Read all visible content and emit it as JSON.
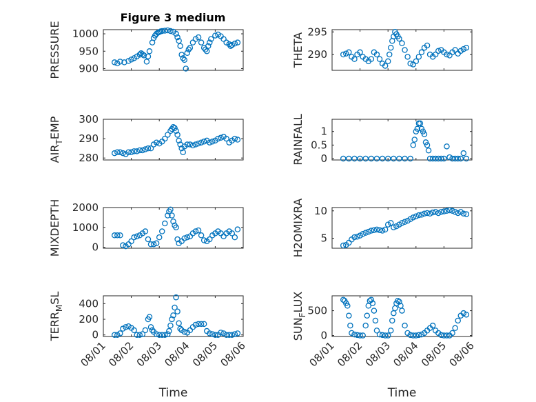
{
  "figure": {
    "title": "Figure 3 medium",
    "marker_color": "#0072BD",
    "marker": "circle"
  },
  "chart_data": [
    {
      "type": "scatter",
      "name": "PRESSURE",
      "ylabel": [
        "PRESSURE"
      ],
      "xlabel": "",
      "ylim": [
        895,
        1012
      ],
      "yticks": [
        900,
        950,
        1000
      ],
      "xlim": [
        0,
        5
      ],
      "xticks": [
        0,
        1,
        2,
        3,
        4,
        5
      ],
      "xticklabels": [],
      "grid": true,
      "x": [
        0.4,
        0.5,
        0.6,
        0.75,
        0.9,
        1.0,
        1.1,
        1.2,
        1.3,
        1.35,
        1.4,
        1.45,
        1.55,
        1.6,
        1.65,
        1.75,
        1.8,
        1.85,
        1.9,
        1.95,
        2.0,
        2.05,
        2.1,
        2.2,
        2.3,
        2.4,
        2.5,
        2.6,
        2.65,
        2.7,
        2.75,
        2.8,
        2.85,
        2.9,
        2.95,
        3.0,
        3.05,
        3.1,
        3.2,
        3.3,
        3.4,
        3.5,
        3.6,
        3.65,
        3.7,
        3.75,
        3.8,
        3.85,
        4.0,
        4.1,
        4.2,
        4.3,
        4.4,
        4.5,
        4.55,
        4.6,
        4.7,
        4.8
      ],
      "y": [
        918,
        915,
        920,
        918,
        922,
        926,
        930,
        935,
        940,
        944,
        941,
        938,
        920,
        935,
        950,
        975,
        988,
        995,
        1000,
        1003,
        1005,
        1007,
        1008,
        1009,
        1010,
        1008,
        1006,
        1000,
        990,
        980,
        965,
        940,
        930,
        925,
        900,
        945,
        955,
        960,
        975,
        985,
        990,
        975,
        960,
        955,
        950,
        965,
        975,
        985,
        995,
        998,
        993,
        985,
        975,
        970,
        965,
        968,
        972,
        975
      ]
    },
    {
      "type": "scatter",
      "name": "THETA",
      "ylabel": [
        "THETA"
      ],
      "xlabel": "",
      "ylim": [
        286.5,
        295.5
      ],
      "yticks": [
        290,
        295
      ],
      "xlim": [
        0,
        5
      ],
      "xticks": [
        0,
        1,
        2,
        3,
        4,
        5
      ],
      "xticklabels": [],
      "grid": true,
      "x": [
        0.4,
        0.5,
        0.6,
        0.7,
        0.8,
        0.9,
        1.0,
        1.1,
        1.2,
        1.3,
        1.4,
        1.5,
        1.6,
        1.7,
        1.8,
        1.9,
        2.0,
        2.05,
        2.1,
        2.15,
        2.2,
        2.25,
        2.3,
        2.35,
        2.4,
        2.5,
        2.6,
        2.7,
        2.8,
        2.9,
        3.0,
        3.1,
        3.2,
        3.3,
        3.4,
        3.5,
        3.6,
        3.7,
        3.8,
        3.9,
        4.0,
        4.1,
        4.2,
        4.3,
        4.4,
        4.5,
        4.6,
        4.7,
        4.8
      ],
      "y": [
        290,
        290.2,
        290.5,
        289.5,
        289,
        290,
        290.5,
        289.5,
        289,
        288.5,
        289,
        290.5,
        290,
        289,
        288,
        287.5,
        288.5,
        290,
        291.5,
        293,
        294,
        295,
        294.5,
        294,
        293.5,
        292.5,
        291,
        289.5,
        288,
        287.8,
        288.5,
        289.5,
        290.5,
        291.5,
        292,
        290,
        289.5,
        290,
        290.8,
        291,
        290.5,
        290,
        289.8,
        290.5,
        291,
        290.2,
        290.8,
        291.2,
        291.5
      ]
    },
    {
      "type": "scatter",
      "name": "AIR_TEMP",
      "ylabel": [
        "AIR",
        "T",
        "EMP"
      ],
      "xlabel": "",
      "ylim": [
        279,
        300
      ],
      "yticks": [
        280,
        290,
        300
      ],
      "xlim": [
        0,
        5
      ],
      "xticks": [
        0,
        1,
        2,
        3,
        4,
        5
      ],
      "xticklabels": [],
      "grid": true,
      "x": [
        0.4,
        0.5,
        0.6,
        0.7,
        0.8,
        0.9,
        1.0,
        1.1,
        1.2,
        1.3,
        1.4,
        1.5,
        1.6,
        1.7,
        1.8,
        1.9,
        2.0,
        2.1,
        2.2,
        2.3,
        2.4,
        2.45,
        2.5,
        2.55,
        2.6,
        2.65,
        2.7,
        2.75,
        2.8,
        2.85,
        2.9,
        3.0,
        3.1,
        3.2,
        3.3,
        3.4,
        3.5,
        3.6,
        3.7,
        3.8,
        3.9,
        4.0,
        4.1,
        4.2,
        4.3,
        4.4,
        4.5,
        4.6,
        4.7,
        4.8
      ],
      "y": [
        282.5,
        283,
        283,
        282.5,
        282,
        283,
        283,
        283.5,
        283.5,
        284,
        284,
        284.5,
        285,
        285,
        287,
        288,
        287.5,
        288.5,
        290,
        292,
        294,
        295,
        296,
        295.5,
        294,
        292,
        289,
        287,
        285,
        283,
        286,
        287,
        287,
        286.5,
        287,
        287.5,
        288,
        288.5,
        289,
        288,
        288.5,
        289,
        290,
        290.5,
        291,
        290,
        288,
        289,
        290,
        289.5
      ]
    },
    {
      "type": "scatter",
      "name": "RAINFALL",
      "ylabel": [
        "RAINFALL"
      ],
      "xlabel": "",
      "ylim": [
        -0.05,
        1.45
      ],
      "yticks": [
        0,
        0.5,
        1
      ],
      "yticklabels": [
        "0",
        "0.5",
        "1"
      ],
      "xlim": [
        0,
        5
      ],
      "xticks": [
        0,
        1,
        2,
        3,
        4,
        5
      ],
      "xticklabels": [],
      "grid": true,
      "x": [
        0.4,
        0.6,
        0.8,
        1.0,
        1.2,
        1.4,
        1.6,
        1.8,
        2.0,
        2.2,
        2.4,
        2.6,
        2.8,
        2.9,
        2.95,
        3.0,
        3.05,
        3.1,
        3.15,
        3.2,
        3.25,
        3.3,
        3.35,
        3.4,
        3.45,
        3.5,
        3.6,
        3.7,
        3.8,
        3.9,
        4.0,
        4.1,
        4.2,
        4.3,
        4.4,
        4.5,
        4.6,
        4.7,
        4.8
      ],
      "y": [
        0,
        0,
        0,
        0,
        0,
        0,
        0,
        0,
        0,
        0,
        0,
        0,
        0,
        0.5,
        0.7,
        1.0,
        1.1,
        1.3,
        1.3,
        1.1,
        1.0,
        0.9,
        0.6,
        0.5,
        0.3,
        0,
        0,
        0,
        0,
        0,
        0,
        0.45,
        0.05,
        0,
        0,
        0,
        0,
        0.2,
        0
      ]
    },
    {
      "type": "scatter",
      "name": "MIXDEPTH",
      "ylabel": [
        "MIXDEPTH"
      ],
      "xlabel": "",
      "ylim": [
        -50,
        2000
      ],
      "yticks": [
        0,
        1000,
        2000
      ],
      "xlim": [
        0,
        5
      ],
      "xticks": [
        0,
        1,
        2,
        3,
        4,
        5
      ],
      "xticklabels": [],
      "grid": true,
      "x": [
        0.4,
        0.5,
        0.6,
        0.7,
        0.8,
        0.9,
        1.0,
        1.1,
        1.2,
        1.3,
        1.4,
        1.5,
        1.6,
        1.7,
        1.8,
        1.9,
        2.0,
        2.1,
        2.2,
        2.3,
        2.35,
        2.4,
        2.45,
        2.5,
        2.55,
        2.6,
        2.65,
        2.7,
        2.8,
        2.9,
        3.0,
        3.1,
        3.2,
        3.3,
        3.4,
        3.5,
        3.6,
        3.7,
        3.8,
        3.9,
        4.0,
        4.1,
        4.2,
        4.3,
        4.4,
        4.5,
        4.6,
        4.7,
        4.8
      ],
      "y": [
        600,
        600,
        600,
        100,
        50,
        150,
        300,
        500,
        550,
        600,
        700,
        800,
        400,
        150,
        150,
        200,
        500,
        800,
        1200,
        1600,
        1800,
        1900,
        1600,
        1300,
        1100,
        1000,
        400,
        200,
        300,
        450,
        500,
        550,
        700,
        800,
        850,
        600,
        350,
        300,
        400,
        600,
        700,
        800,
        700,
        550,
        700,
        800,
        700,
        500,
        900
      ]
    },
    {
      "type": "scatter",
      "name": "H2OMIXRA",
      "ylabel": [
        "H2OMIXRA"
      ],
      "xlabel": "",
      "ylim": [
        3.2,
        10.6
      ],
      "yticks": [
        5,
        10
      ],
      "xlim": [
        0,
        5
      ],
      "xticks": [
        0,
        1,
        2,
        3,
        4,
        5
      ],
      "xticklabels": [],
      "grid": true,
      "x": [
        0.4,
        0.5,
        0.6,
        0.7,
        0.8,
        0.9,
        1.0,
        1.1,
        1.2,
        1.3,
        1.4,
        1.5,
        1.6,
        1.7,
        1.8,
        1.9,
        2.0,
        2.1,
        2.2,
        2.3,
        2.4,
        2.5,
        2.6,
        2.7,
        2.8,
        2.9,
        3.0,
        3.1,
        3.2,
        3.3,
        3.4,
        3.5,
        3.6,
        3.7,
        3.8,
        3.9,
        4.0,
        4.1,
        4.2,
        4.3,
        4.4,
        4.5,
        4.6,
        4.7,
        4.8
      ],
      "y": [
        3.7,
        3.8,
        4.2,
        4.8,
        5.2,
        5.3,
        5.5,
        5.8,
        6.0,
        6.2,
        6.4,
        6.5,
        6.6,
        6.5,
        6.4,
        6.6,
        7.5,
        7.8,
        7.0,
        7.2,
        7.5,
        7.8,
        8.0,
        8.2,
        8.5,
        8.8,
        9.0,
        9.2,
        9.3,
        9.5,
        9.6,
        9.5,
        9.7,
        9.8,
        9.6,
        9.8,
        9.9,
        10.0,
        10.1,
        10.0,
        9.8,
        9.6,
        9.8,
        9.5,
        9.4
      ]
    },
    {
      "type": "scatter",
      "name": "TERR_MSL",
      "ylabel": [
        "TERR",
        "M",
        "SL"
      ],
      "xlabel": "Time",
      "ylim": [
        -20,
        500
      ],
      "yticks": [
        0,
        200,
        400
      ],
      "xlim": [
        0,
        5
      ],
      "xticks": [
        0,
        1,
        2,
        3,
        4,
        5
      ],
      "xticklabels": [
        "08/01",
        "08/02",
        "08/03",
        "08/04",
        "08/05",
        "08/06"
      ],
      "grid": true,
      "x": [
        0.4,
        0.5,
        0.6,
        0.7,
        0.8,
        0.9,
        1.0,
        1.1,
        1.2,
        1.3,
        1.4,
        1.5,
        1.6,
        1.65,
        1.7,
        1.75,
        1.8,
        1.9,
        2.0,
        2.1,
        2.2,
        2.3,
        2.35,
        2.4,
        2.45,
        2.5,
        2.55,
        2.6,
        2.65,
        2.7,
        2.75,
        2.8,
        2.9,
        3.0,
        3.1,
        3.2,
        3.3,
        3.4,
        3.5,
        3.6,
        3.7,
        3.8,
        3.9,
        4.0,
        4.1,
        4.2,
        4.3,
        4.4,
        4.5,
        4.6,
        4.7,
        4.8
      ],
      "y": [
        0,
        0,
        20,
        80,
        100,
        110,
        90,
        60,
        0,
        0,
        10,
        60,
        200,
        230,
        100,
        60,
        40,
        10,
        0,
        0,
        0,
        10,
        50,
        120,
        200,
        250,
        350,
        480,
        300,
        150,
        80,
        60,
        40,
        30,
        60,
        100,
        130,
        140,
        140,
        140,
        50,
        20,
        10,
        0,
        0,
        30,
        20,
        0,
        0,
        0,
        10,
        20
      ]
    },
    {
      "type": "scatter",
      "name": "SUN_FLUX",
      "ylabel": [
        "SUN",
        "F",
        "LUX"
      ],
      "xlabel": "Time",
      "ylim": [
        -20,
        800
      ],
      "yticks": [
        0,
        500
      ],
      "xlim": [
        0,
        5
      ],
      "xticks": [
        0,
        1,
        2,
        3,
        4,
        5
      ],
      "xticklabels": [
        "08/01",
        "08/02",
        "08/03",
        "08/04",
        "08/05",
        "08/06"
      ],
      "grid": true,
      "x": [
        0.4,
        0.45,
        0.5,
        0.55,
        0.6,
        0.65,
        0.7,
        0.8,
        0.9,
        1.0,
        1.1,
        1.2,
        1.25,
        1.3,
        1.35,
        1.4,
        1.45,
        1.5,
        1.55,
        1.6,
        1.7,
        1.8,
        1.9,
        2.0,
        2.1,
        2.15,
        2.2,
        2.25,
        2.3,
        2.35,
        2.4,
        2.45,
        2.5,
        2.6,
        2.7,
        2.8,
        2.9,
        3.0,
        3.1,
        3.2,
        3.3,
        3.4,
        3.5,
        3.6,
        3.7,
        3.8,
        3.9,
        4.0,
        4.1,
        4.2,
        4.3,
        4.4,
        4.5,
        4.6,
        4.7,
        4.8
      ],
      "y": [
        720,
        700,
        650,
        600,
        400,
        200,
        50,
        20,
        10,
        0,
        0,
        200,
        400,
        600,
        700,
        720,
        650,
        500,
        300,
        100,
        20,
        10,
        0,
        0,
        100,
        300,
        450,
        550,
        650,
        700,
        680,
        600,
        500,
        200,
        50,
        10,
        0,
        0,
        10,
        20,
        50,
        100,
        150,
        200,
        100,
        50,
        10,
        0,
        0,
        0,
        50,
        150,
        300,
        400,
        450,
        420
      ]
    }
  ]
}
